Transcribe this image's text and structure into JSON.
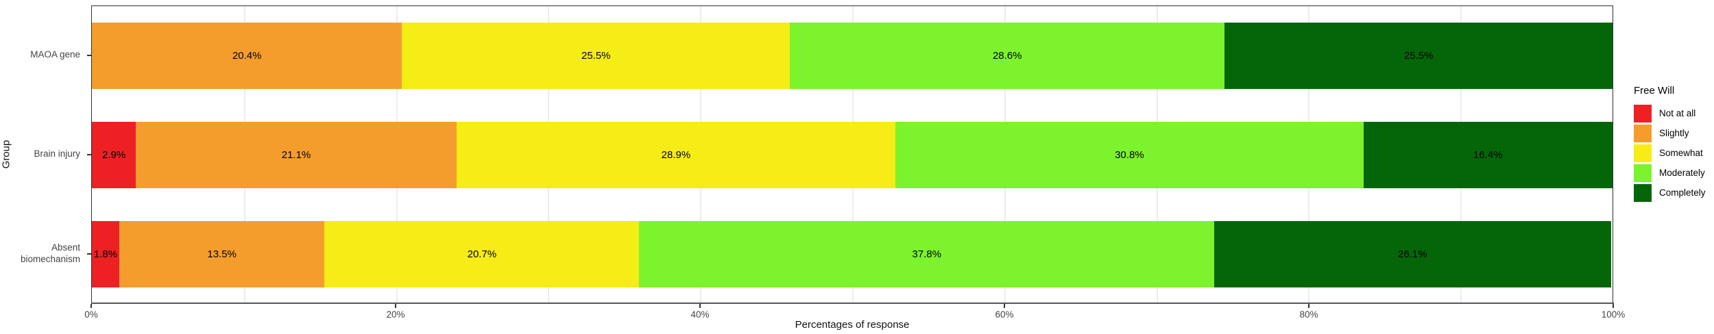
{
  "chart_data": {
    "type": "bar",
    "orientation": "horizontal",
    "stacked": true,
    "title": "",
    "xlabel": "Percentages of response",
    "ylabel": "Group",
    "xlim": [
      0,
      100
    ],
    "x_ticks": [
      {
        "value": 0,
        "label": "0%"
      },
      {
        "value": 20,
        "label": "20%"
      },
      {
        "value": 40,
        "label": "40%"
      },
      {
        "value": 60,
        "label": "60%"
      },
      {
        "value": 80,
        "label": "80%"
      },
      {
        "value": 100,
        "label": "100%"
      }
    ],
    "minor_gridline_step": 10,
    "grid": true,
    "categories": [
      "MAOA gene",
      "Brain injury",
      "Absent biomechanism"
    ],
    "series": [
      {
        "name": "Not at all",
        "color": "#ED2124",
        "values": [
          0,
          2.9,
          1.8
        ],
        "labels": [
          "",
          "2.9%",
          "1.8%"
        ]
      },
      {
        "name": "Slightly",
        "color": "#F49D2D",
        "values": [
          20.4,
          21.1,
          13.5
        ],
        "labels": [
          "20.4%",
          "21.1%",
          "13.5%"
        ]
      },
      {
        "name": "Somewhat",
        "color": "#F6EC16",
        "values": [
          25.5,
          28.9,
          20.7
        ],
        "labels": [
          "25.5%",
          "28.9%",
          "20.7%"
        ]
      },
      {
        "name": "Moderately",
        "color": "#7CF32C",
        "values": [
          28.6,
          30.8,
          37.8
        ],
        "labels": [
          "28.6%",
          "30.8%",
          "37.8%"
        ]
      },
      {
        "name": "Completely",
        "color": "#056609",
        "values": [
          25.5,
          16.4,
          26.1
        ],
        "labels": [
          "25.5%",
          "16.4%",
          "26.1%"
        ]
      }
    ],
    "legend": {
      "title": "Free Will",
      "position": "right"
    },
    "colors": {
      "panel_border": "#2f2f2f",
      "gridline": "#ececec",
      "axis_text": "#444444",
      "axis_line": "#565656",
      "label_text": "#000000"
    }
  }
}
